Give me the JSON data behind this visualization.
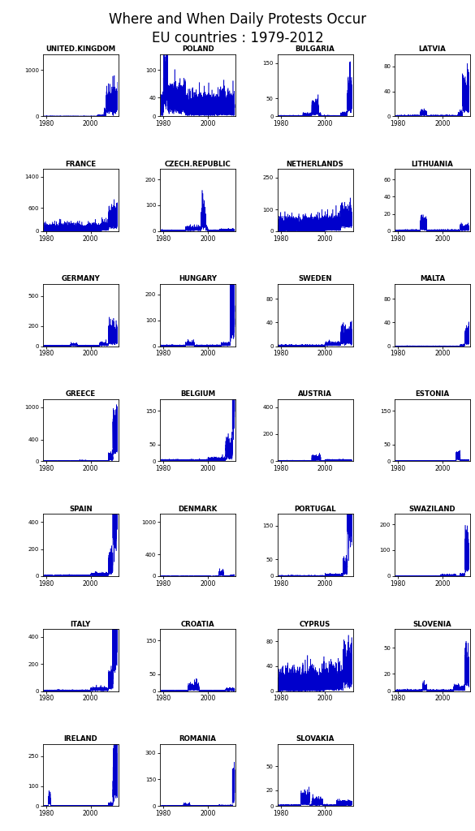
{
  "title_line1": "Where and When Daily Protests Occur",
  "title_line2": "EU countries : 1979-2012",
  "line_color": "#0000CC",
  "background_color": "#FFFFFF",
  "start_year": 1979,
  "end_year": 2012,
  "grid_layout": [
    [
      "UNITED.KINGDOM",
      "POLAND",
      "BULGARIA",
      "LATVIA"
    ],
    [
      "FRANCE",
      "CZECH.REPUBLIC",
      "NETHERLANDS",
      "LITHUANIA"
    ],
    [
      "GERMANY",
      "HUNGARY",
      "SWEDEN",
      "MALTA"
    ],
    [
      "GREECE",
      "BELGIUM",
      "AUSTRIA",
      "ESTONIA"
    ],
    [
      "SPAIN",
      "DENMARK",
      "PORTUGAL",
      "SWAZILAND"
    ],
    [
      "ITALY",
      "CROATIA",
      "CYPRUS",
      "SLOVENIA"
    ],
    [
      "IRELAND",
      "ROMANIA",
      "SLOVAKIA",
      null
    ]
  ],
  "ylabels": {
    "UNITED.KINGDOM": [
      0,
      1000
    ],
    "POLAND": [
      0,
      40,
      100
    ],
    "BULGARIA": [
      0,
      50,
      150
    ],
    "LATVIA": [
      0,
      40,
      80
    ],
    "FRANCE": [
      0,
      600,
      1400
    ],
    "CZECH.REPUBLIC": [
      0,
      100,
      200
    ],
    "NETHERLANDS": [
      0,
      100,
      250
    ],
    "LITHUANIA": [
      0,
      20,
      40,
      60
    ],
    "GERMANY": [
      0,
      200,
      500
    ],
    "HUNGARY": [
      0,
      100,
      200
    ],
    "SWEDEN": [
      0,
      40,
      80
    ],
    "MALTA": [
      0,
      40,
      80
    ],
    "GREECE": [
      0,
      400,
      1000
    ],
    "BELGIUM": [
      0,
      50,
      150
    ],
    "AUSTRIA": [
      0,
      200,
      400
    ],
    "ESTONIA": [
      0,
      50,
      150
    ],
    "SPAIN": [
      0,
      200,
      400
    ],
    "DENMARK": [
      0,
      400,
      1000
    ],
    "PORTUGAL": [
      0,
      50,
      150
    ],
    "SWAZILAND": [
      0,
      100,
      200
    ],
    "ITALY": [
      0,
      200,
      400
    ],
    "CROATIA": [
      0,
      50,
      150
    ],
    "CYPRUS": [
      0,
      40,
      80
    ],
    "SLOVENIA": [
      0,
      20,
      50
    ],
    "IRELAND": [
      0,
      100,
      250
    ],
    "ROMANIA": [
      0,
      150,
      300
    ],
    "SLOVAKIA": [
      0,
      20,
      50
    ]
  },
  "ymaxs": {
    "UNITED.KINGDOM": 1350,
    "POLAND": 135,
    "BULGARIA": 175,
    "LATVIA": 100,
    "FRANCE": 1600,
    "CZECH.REPUBLIC": 240,
    "NETHERLANDS": 290,
    "LITHUANIA": 72,
    "GERMANY": 620,
    "HUNGARY": 240,
    "SWEDEN": 105,
    "MALTA": 105,
    "GREECE": 1150,
    "BELGIUM": 185,
    "AUSTRIA": 460,
    "ESTONIA": 185,
    "SPAIN": 460,
    "DENMARK": 1150,
    "PORTUGAL": 185,
    "SWAZILAND": 240,
    "ITALY": 460,
    "CROATIA": 185,
    "CYPRUS": 100,
    "SLOVENIA": 72,
    "IRELAND": 310,
    "ROMANIA": 350,
    "SLOVAKIA": 78
  }
}
